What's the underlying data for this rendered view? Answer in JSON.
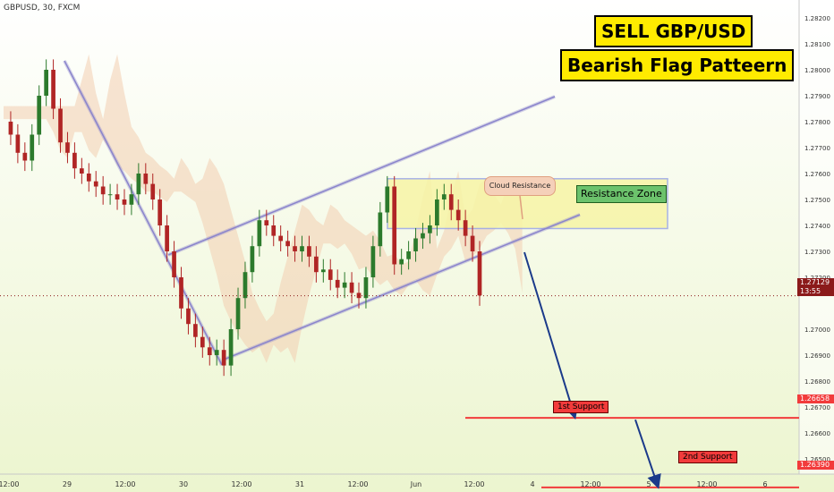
{
  "symbol_title": "GBPUSD, 30, FXCM",
  "banners": {
    "title": "SELL GBP/USD",
    "subtitle": "Bearish Flag Patteern"
  },
  "annotations": {
    "cloud_resistance": "Cloud Resistance",
    "resistance_zone": "Resistance Zone",
    "support_1": "1st Support",
    "support_2": "2nd Support"
  },
  "price_badges": {
    "current_price": "1.27129",
    "countdown": "13:55",
    "support_1_price": "1.26658",
    "support_2_price": "1.26390"
  },
  "colors": {
    "background_top": "#ffffff",
    "background_bottom": "#ecf5cf",
    "bull_candle": "#2c7a2c",
    "bear_candle": "#b02525",
    "channel": "#8a84cc",
    "support_line": "#f23b3b",
    "arrow": "#1b3a8a",
    "zone_fill": "#f7f5a6",
    "zone_border": "#9aa6e6",
    "cloud_bull": "#bfe0a6",
    "cloud_bear": "#f3cdb0",
    "banner": "#ffeb00",
    "current_price_badge": "#8b1a1a"
  },
  "chart_data": {
    "type": "candlestick",
    "instrument": "GBPUSD",
    "timeframe": "30",
    "source": "FXCM",
    "x_labels": [
      "12:00",
      "29",
      "12:00",
      "30",
      "12:00",
      "31",
      "12:00",
      "Jun",
      "12:00",
      "4",
      "12:00",
      "5",
      "12:00",
      "6"
    ],
    "y_ticks": [
      1.2639,
      1.265,
      1.266,
      1.26658,
      1.267,
      1.268,
      1.269,
      1.27,
      1.27129,
      1.272,
      1.273,
      1.274,
      1.275,
      1.276,
      1.277,
      1.278,
      1.279,
      1.28,
      1.281,
      1.282
    ],
    "y_range": [
      1.2636,
      1.2826
    ],
    "levels": {
      "current_price": 1.27129,
      "support_1": 1.26658,
      "support_2": 1.2639,
      "resistance_zone": [
        1.27388,
        1.2758
      ]
    },
    "price_path": [
      1.278,
      1.2775,
      1.2768,
      1.2765,
      1.2775,
      1.279,
      1.28,
      1.2785,
      1.2772,
      1.2768,
      1.2762,
      1.276,
      1.2757,
      1.2755,
      1.2752,
      1.2752,
      1.275,
      1.2748,
      1.2752,
      1.276,
      1.2756,
      1.275,
      1.274,
      1.273,
      1.272,
      1.2708,
      1.2702,
      1.2697,
      1.2693,
      1.269,
      1.2692,
      1.2686,
      1.27,
      1.2712,
      1.2722,
      1.2732,
      1.2742,
      1.274,
      1.2736,
      1.2734,
      1.2732,
      1.273,
      1.2732,
      1.2728,
      1.2722,
      1.2723,
      1.2719,
      1.2716,
      1.2718,
      1.2714,
      1.2712,
      1.272,
      1.2732,
      1.2745,
      1.2755,
      1.2725,
      1.2727,
      1.273,
      1.2735,
      1.2737,
      1.274,
      1.275,
      1.2752,
      1.2746,
      1.2742,
      1.2736,
      1.273,
      1.2713
    ]
  }
}
